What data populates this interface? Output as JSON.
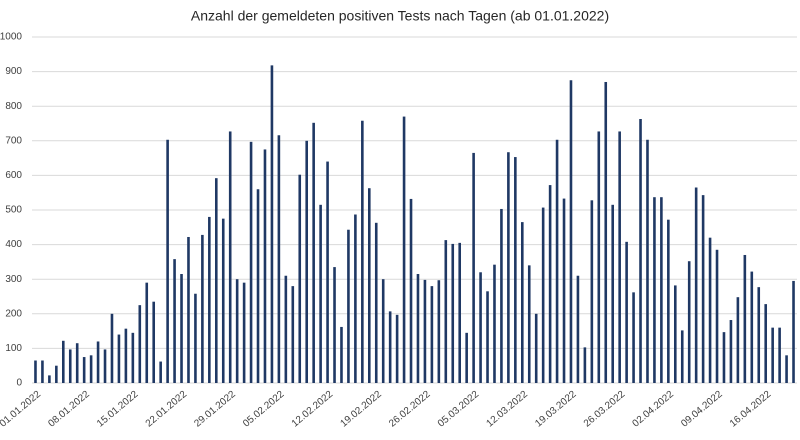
{
  "chart_data": {
    "type": "bar",
    "title": "Anzahl der gemeldeten positiven Tests nach Tagen (ab 01.01.2022)",
    "categories": [
      "01.01.2022",
      null,
      null,
      null,
      null,
      null,
      null,
      "08.01.2022",
      null,
      null,
      null,
      null,
      null,
      null,
      "15.01.2022",
      null,
      null,
      null,
      null,
      null,
      null,
      "22.01.2022",
      null,
      null,
      null,
      null,
      null,
      null,
      "29.01.2022",
      null,
      null,
      null,
      null,
      null,
      null,
      "05.02.2022",
      null,
      null,
      null,
      null,
      null,
      null,
      "12.02.2022",
      null,
      null,
      null,
      null,
      null,
      null,
      "19.02.2022",
      null,
      null,
      null,
      null,
      null,
      null,
      "26.02.2022",
      null,
      null,
      null,
      null,
      null,
      null,
      "05.03.2022",
      null,
      null,
      null,
      null,
      null,
      null,
      "12.03.2022",
      null,
      null,
      null,
      null,
      null,
      null,
      "19.03.2022",
      null,
      null,
      null,
      null,
      null,
      null,
      "26.03.2022",
      null,
      null,
      null,
      null,
      null,
      null,
      "02.04.2022",
      null,
      null,
      null,
      null,
      null,
      null,
      "09.04.2022",
      null,
      null,
      null,
      null,
      null,
      null,
      "16.04.2022",
      null,
      null,
      null,
      null
    ],
    "values": [
      65,
      65,
      22,
      50,
      122,
      97,
      115,
      75,
      80,
      120,
      97,
      200,
      140,
      157,
      145,
      225,
      290,
      235,
      62,
      703,
      358,
      315,
      422,
      258,
      428,
      480,
      592,
      475,
      727,
      300,
      290,
      697,
      560,
      675,
      918,
      716,
      310,
      280,
      602,
      700,
      752,
      515,
      640,
      335,
      162,
      443,
      487,
      758,
      563,
      463,
      300,
      207,
      197,
      770,
      532,
      315,
      298,
      280,
      297,
      413,
      402,
      405,
      145,
      665,
      320,
      265,
      342,
      503,
      667,
      653,
      465,
      340,
      200,
      507,
      572,
      703,
      533,
      875,
      310,
      103,
      528,
      727,
      870,
      515,
      727,
      408,
      262,
      763,
      703,
      537,
      537,
      472,
      282,
      152,
      352,
      565,
      543,
      420,
      385,
      147,
      182,
      248,
      370,
      322,
      277,
      228,
      160,
      160,
      80,
      295
    ],
    "color": "#1f3864",
    "ylim": [
      0,
      1000
    ],
    "yticks": [
      0,
      100,
      200,
      300,
      400,
      500,
      600,
      700,
      800,
      900,
      1000
    ],
    "grid": true
  }
}
